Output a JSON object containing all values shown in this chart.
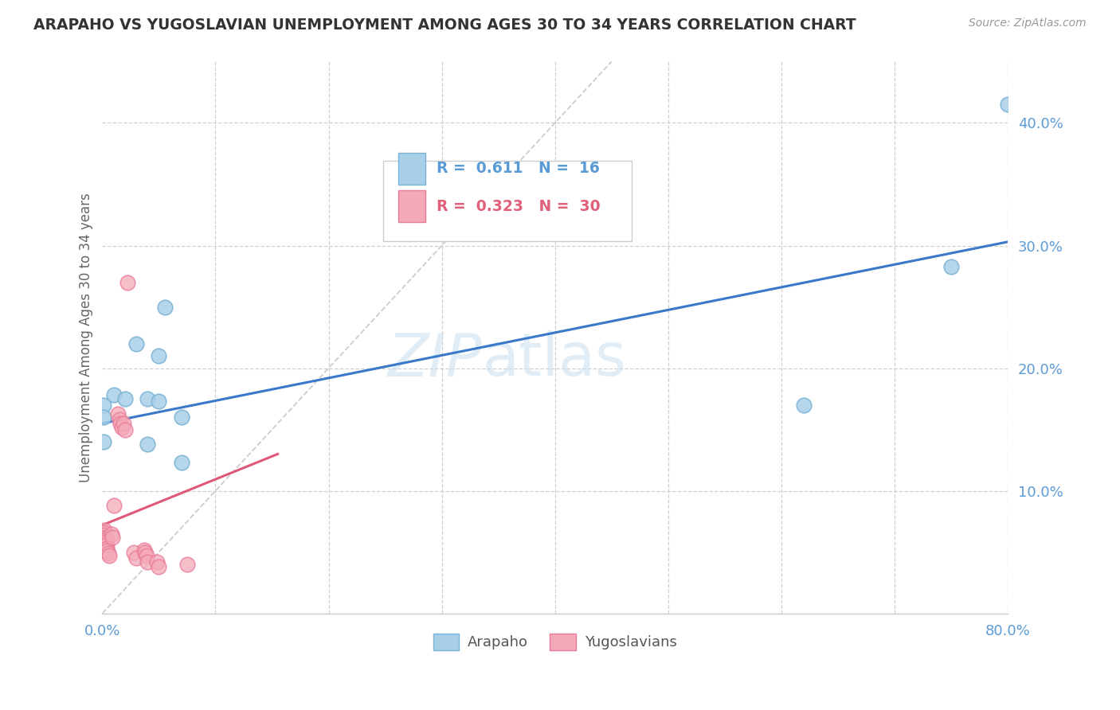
{
  "title": "ARAPAHO VS YUGOSLAVIAN UNEMPLOYMENT AMONG AGES 30 TO 34 YEARS CORRELATION CHART",
  "source": "Source: ZipAtlas.com",
  "ylabel": "Unemployment Among Ages 30 to 34 years",
  "xlim": [
    0.0,
    0.8
  ],
  "ylim": [
    0.0,
    0.45
  ],
  "xticks": [
    0.0,
    0.1,
    0.2,
    0.3,
    0.4,
    0.5,
    0.6,
    0.7,
    0.8
  ],
  "xtick_labels_shown": [
    "0.0%",
    "",
    "",
    "",
    "",
    "",
    "",
    "",
    "80.0%"
  ],
  "yticks": [
    0.0,
    0.1,
    0.2,
    0.3,
    0.4
  ],
  "ytick_labels": [
    "",
    "10.0%",
    "20.0%",
    "30.0%",
    "40.0%"
  ],
  "watermark": "ZIPatlas",
  "arapaho_color": "#a8cfe8",
  "arapaho_edge_color": "#7ab3d4",
  "yugoslavian_color": "#f4a9b8",
  "yugoslavian_edge_color": "#e87a9a",
  "arapaho_line_color": "#3a78c9",
  "yugoslavian_line_color": "#e05878",
  "diagonal_line_color": "#cccccc",
  "tick_color": "#5b9bd5",
  "arapaho_R": "0.611",
  "arapaho_N": "16",
  "yugoslavian_R": "0.323",
  "yugoslavian_N": "30",
  "arapaho_points": [
    [
      0.001,
      0.17
    ],
    [
      0.001,
      0.16
    ],
    [
      0.001,
      0.14
    ],
    [
      0.01,
      0.178
    ],
    [
      0.02,
      0.175
    ],
    [
      0.03,
      0.22
    ],
    [
      0.04,
      0.175
    ],
    [
      0.04,
      0.138
    ],
    [
      0.05,
      0.21
    ],
    [
      0.05,
      0.173
    ],
    [
      0.055,
      0.25
    ],
    [
      0.07,
      0.16
    ],
    [
      0.07,
      0.123
    ],
    [
      0.62,
      0.17
    ],
    [
      0.75,
      0.283
    ],
    [
      0.8,
      0.415
    ]
  ],
  "yugoslavian_points": [
    [
      0.002,
      0.068
    ],
    [
      0.002,
      0.066
    ],
    [
      0.002,
      0.064
    ],
    [
      0.003,
      0.062
    ],
    [
      0.003,
      0.06
    ],
    [
      0.003,
      0.058
    ],
    [
      0.004,
      0.056
    ],
    [
      0.004,
      0.053
    ],
    [
      0.004,
      0.051
    ],
    [
      0.005,
      0.049
    ],
    [
      0.006,
      0.047
    ],
    [
      0.008,
      0.065
    ],
    [
      0.009,
      0.062
    ],
    [
      0.01,
      0.088
    ],
    [
      0.014,
      0.163
    ],
    [
      0.015,
      0.158
    ],
    [
      0.016,
      0.155
    ],
    [
      0.017,
      0.152
    ],
    [
      0.019,
      0.155
    ],
    [
      0.02,
      0.15
    ],
    [
      0.022,
      0.27
    ],
    [
      0.028,
      0.05
    ],
    [
      0.03,
      0.045
    ],
    [
      0.037,
      0.052
    ],
    [
      0.038,
      0.05
    ],
    [
      0.039,
      0.047
    ],
    [
      0.04,
      0.042
    ],
    [
      0.048,
      0.042
    ],
    [
      0.05,
      0.038
    ],
    [
      0.075,
      0.04
    ]
  ],
  "arapaho_trendline": [
    [
      0.0,
      0.155
    ],
    [
      0.8,
      0.303
    ]
  ],
  "yugoslavian_trendline": [
    [
      0.0,
      0.072
    ],
    [
      0.155,
      0.13
    ]
  ],
  "diagonal_line": [
    [
      0.0,
      0.0
    ],
    [
      0.45,
      0.45
    ]
  ]
}
